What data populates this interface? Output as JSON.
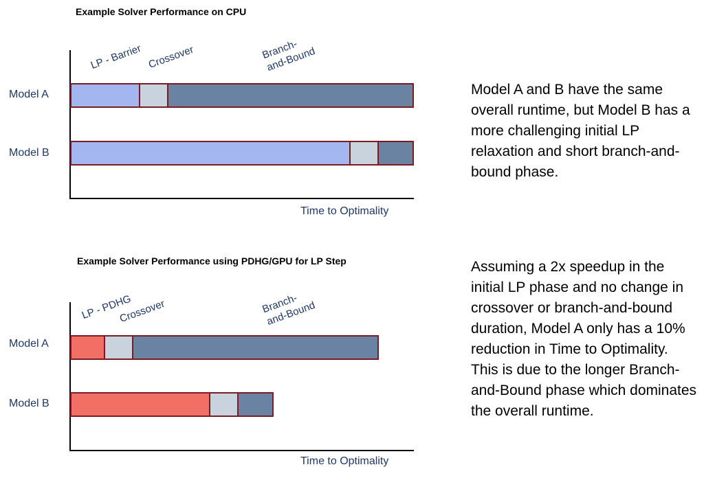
{
  "colors": {
    "lp_cpu": "#a4b6ef",
    "lp_gpu": "#f26f66",
    "crossover": "#c9d3dd",
    "branch_and_bound": "#6b83a3",
    "bar_border": "#7b1c24",
    "label_text": "#1f3864"
  },
  "chart_data": [
    {
      "type": "bar",
      "orientation": "horizontal-stacked",
      "title": "Example Solver Performance on CPU",
      "xlabel": "Time to Optimality",
      "ylabel": "",
      "categories": [
        "Model A",
        "Model B"
      ],
      "phase_labels": [
        "LP - Barrier",
        "Crossover",
        "Branch-\nand-Bound"
      ],
      "series": [
        {
          "name": "LP - Barrier",
          "color": "#a4b6ef",
          "values": [
            10,
            40
          ]
        },
        {
          "name": "Crossover",
          "color": "#c9d3dd",
          "values": [
            4,
            4
          ]
        },
        {
          "name": "Branch-and-Bound",
          "color": "#6b83a3",
          "values": [
            35,
            5
          ]
        }
      ],
      "xlim": [
        0,
        49
      ]
    },
    {
      "type": "bar",
      "orientation": "horizontal-stacked",
      "title": "Example Solver Performance using PDHG/GPU for LP Step",
      "xlabel": "Time to Optimality",
      "ylabel": "",
      "categories": [
        "Model A",
        "Model B"
      ],
      "phase_labels": [
        "LP - PDHG",
        "Crossover",
        "Branch-\nand-Bound"
      ],
      "series": [
        {
          "name": "LP - PDHG",
          "color": "#f26f66",
          "values": [
            5,
            20
          ]
        },
        {
          "name": "Crossover",
          "color": "#c9d3dd",
          "values": [
            4,
            4
          ]
        },
        {
          "name": "Branch-and-Bound",
          "color": "#6b83a3",
          "values": [
            35,
            5
          ]
        }
      ],
      "xlim": [
        0,
        49
      ]
    }
  ],
  "notes": [
    "Model A and B have the same overall runtime, but Model B has a more challenging initial LP relaxation and short branch-and-bound phase.",
    "Assuming a 2x speedup in the initial LP phase and no change in crossover or branch-and-bound duration, Model A only has a 10% reduction in Time to Optimality. This is due to the longer Branch-and-Bound phase which dominates the overall runtime."
  ]
}
